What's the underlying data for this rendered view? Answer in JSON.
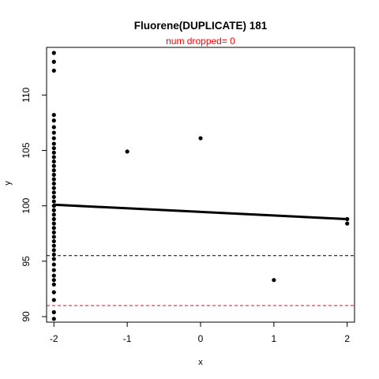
{
  "chart_data": {
    "type": "scatter",
    "title": "Fluorene(DUPLICATE) 181",
    "subtitle": "num dropped= 0",
    "subtitle_color": "#ff0000",
    "xlabel": "x",
    "ylabel": "y",
    "xlim": [
      -2.1,
      2.1
    ],
    "ylim": [
      89.5,
      114.3
    ],
    "x_ticks": [
      -2,
      -1,
      0,
      1,
      2
    ],
    "y_ticks": [
      90,
      95,
      100,
      105,
      110
    ],
    "grid": false,
    "points": [
      {
        "x": -2,
        "y": 113.8
      },
      {
        "x": -2,
        "y": 113.0
      },
      {
        "x": -2,
        "y": 112.2
      },
      {
        "x": -2,
        "y": 108.2
      },
      {
        "x": -2,
        "y": 107.7
      },
      {
        "x": -2,
        "y": 107.1
      },
      {
        "x": -2,
        "y": 106.6
      },
      {
        "x": -2,
        "y": 106.1
      },
      {
        "x": -2,
        "y": 105.6
      },
      {
        "x": -2,
        "y": 105.2
      },
      {
        "x": -2,
        "y": 104.8
      },
      {
        "x": -2,
        "y": 104.4
      },
      {
        "x": -2,
        "y": 104.0
      },
      {
        "x": -2,
        "y": 103.6
      },
      {
        "x": -2,
        "y": 103.2
      },
      {
        "x": -2,
        "y": 102.8
      },
      {
        "x": -2,
        "y": 102.4
      },
      {
        "x": -2,
        "y": 102.0
      },
      {
        "x": -2,
        "y": 101.6
      },
      {
        "x": -2,
        "y": 101.2
      },
      {
        "x": -2,
        "y": 100.8
      },
      {
        "x": -2,
        "y": 100.4
      },
      {
        "x": -2,
        "y": 100.0
      },
      {
        "x": -2,
        "y": 99.6
      },
      {
        "x": -2,
        "y": 99.2
      },
      {
        "x": -2,
        "y": 98.8
      },
      {
        "x": -2,
        "y": 98.4
      },
      {
        "x": -2,
        "y": 98.0
      },
      {
        "x": -2,
        "y": 97.6
      },
      {
        "x": -2,
        "y": 97.2
      },
      {
        "x": -2,
        "y": 96.8
      },
      {
        "x": -2,
        "y": 96.4
      },
      {
        "x": -2,
        "y": 96.0
      },
      {
        "x": -2,
        "y": 95.6
      },
      {
        "x": -2,
        "y": 95.2
      },
      {
        "x": -2,
        "y": 94.7
      },
      {
        "x": -2,
        "y": 94.2
      },
      {
        "x": -2,
        "y": 93.7
      },
      {
        "x": -2,
        "y": 93.3
      },
      {
        "x": -2,
        "y": 92.9
      },
      {
        "x": -2,
        "y": 92.2
      },
      {
        "x": -2,
        "y": 91.5
      },
      {
        "x": -2,
        "y": 90.4
      },
      {
        "x": -2,
        "y": 89.8
      },
      {
        "x": -1,
        "y": 104.9
      },
      {
        "x": 0,
        "y": 106.1
      },
      {
        "x": 1,
        "y": 93.3
      },
      {
        "x": 2,
        "y": 98.8
      },
      {
        "x": 2,
        "y": 98.4
      }
    ],
    "regression_line": {
      "x": [
        -2,
        2
      ],
      "y": [
        100.1,
        98.8
      ],
      "color": "#000000"
    },
    "reference_lines": [
      {
        "y": 95.5,
        "color": "#000000",
        "style": "dashed"
      },
      {
        "y": 91.0,
        "color": "#b22222",
        "style": "dashed"
      }
    ]
  }
}
